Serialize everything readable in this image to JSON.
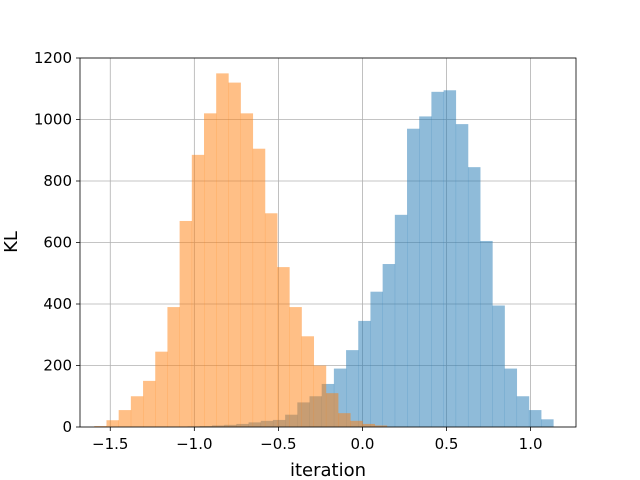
{
  "chart_data": {
    "type": "bar",
    "title": "",
    "xlabel": "iteration",
    "ylabel": "KL",
    "xlim": [
      -1.68,
      1.27
    ],
    "ylim": [
      0,
      1200
    ],
    "xticks": [
      -1.5,
      -1.0,
      -0.5,
      0.0,
      0.5,
      1.0
    ],
    "xtick_labels": [
      "−1.5",
      "−1.0",
      "−0.5",
      "0.0",
      "0.5",
      "1.0"
    ],
    "yticks": [
      0,
      200,
      400,
      600,
      800,
      1000,
      1200
    ],
    "ytick_labels": [
      "0",
      "200",
      "400",
      "600",
      "800",
      "1000",
      "1200"
    ],
    "grid": true,
    "legend": "none",
    "series": [
      {
        "color": "#1f77b4",
        "alpha": 0.5,
        "bin_width": 0.0725,
        "bin_start": -1.04,
        "values": [
          2,
          3,
          5,
          7,
          10,
          15,
          20,
          23,
          40,
          80,
          100,
          140,
          190,
          250,
          345,
          440,
          530,
          690,
          970,
          1010,
          1090,
          1095,
          985,
          845,
          605,
          395,
          190,
          100,
          55,
          25
        ]
      },
      {
        "color": "#ff7f0e",
        "alpha": 0.5,
        "bin_width": 0.0725,
        "bin_start": -1.595,
        "values": [
          3,
          22,
          55,
          100,
          150,
          245,
          390,
          670,
          885,
          1020,
          1150,
          1120,
          1020,
          905,
          695,
          520,
          390,
          295,
          200,
          110,
          45,
          20,
          10,
          5
        ]
      }
    ]
  }
}
